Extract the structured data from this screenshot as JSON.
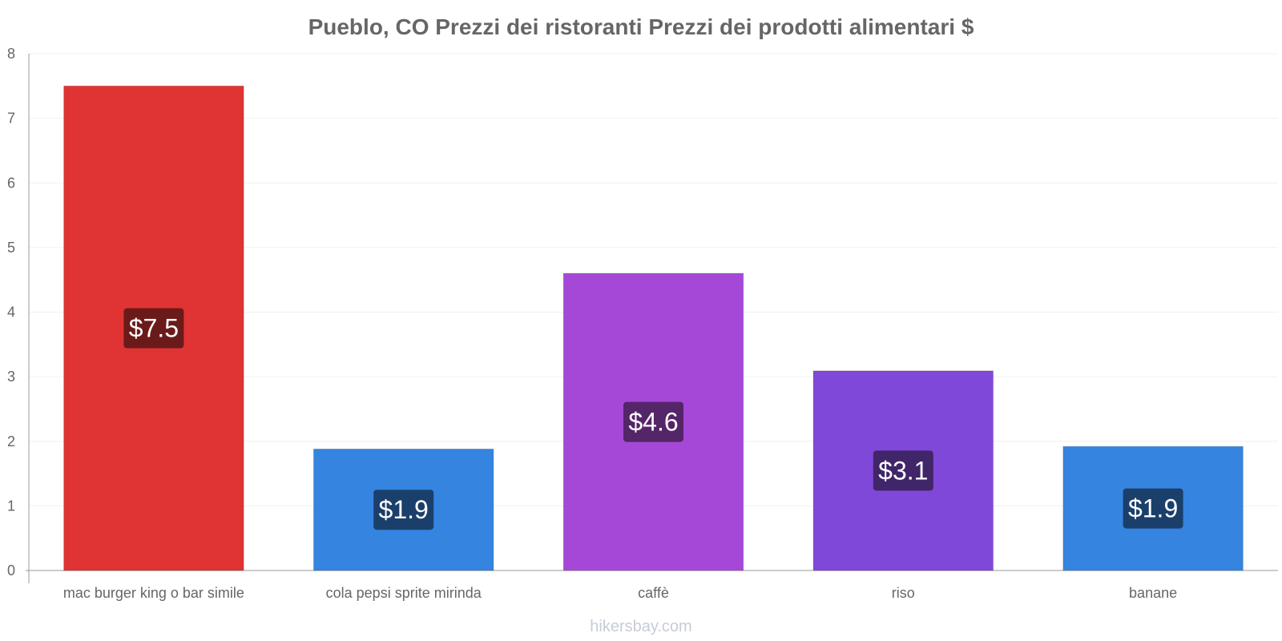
{
  "chart_data": {
    "type": "bar",
    "title": "Pueblo, CO Prezzi dei ristoranti Prezzi dei prodotti alimentari $",
    "categories": [
      "mac burger king o bar simile",
      "cola pepsi sprite mirinda",
      "caffè",
      "riso",
      "banane"
    ],
    "values": [
      7.5,
      1.88,
      4.6,
      3.09,
      1.92
    ],
    "value_labels": [
      "$7.5",
      "$1.9",
      "$4.6",
      "$3.1",
      "$1.9"
    ],
    "colors": [
      "#e03434",
      "#3584e0",
      "#a548d8",
      "#8048d8",
      "#3584e0"
    ],
    "label_bg_colors": [
      "#6b1a1a",
      "#1b3f6b",
      "#542568",
      "#402568",
      "#1b3f6b"
    ],
    "ylim": [
      0,
      8
    ],
    "yticks": [
      "0",
      "1",
      "2",
      "3",
      "4",
      "5",
      "6",
      "7",
      "8"
    ],
    "xlabel": "",
    "ylabel": "",
    "grid": true
  },
  "watermark": "hikersbay.com"
}
